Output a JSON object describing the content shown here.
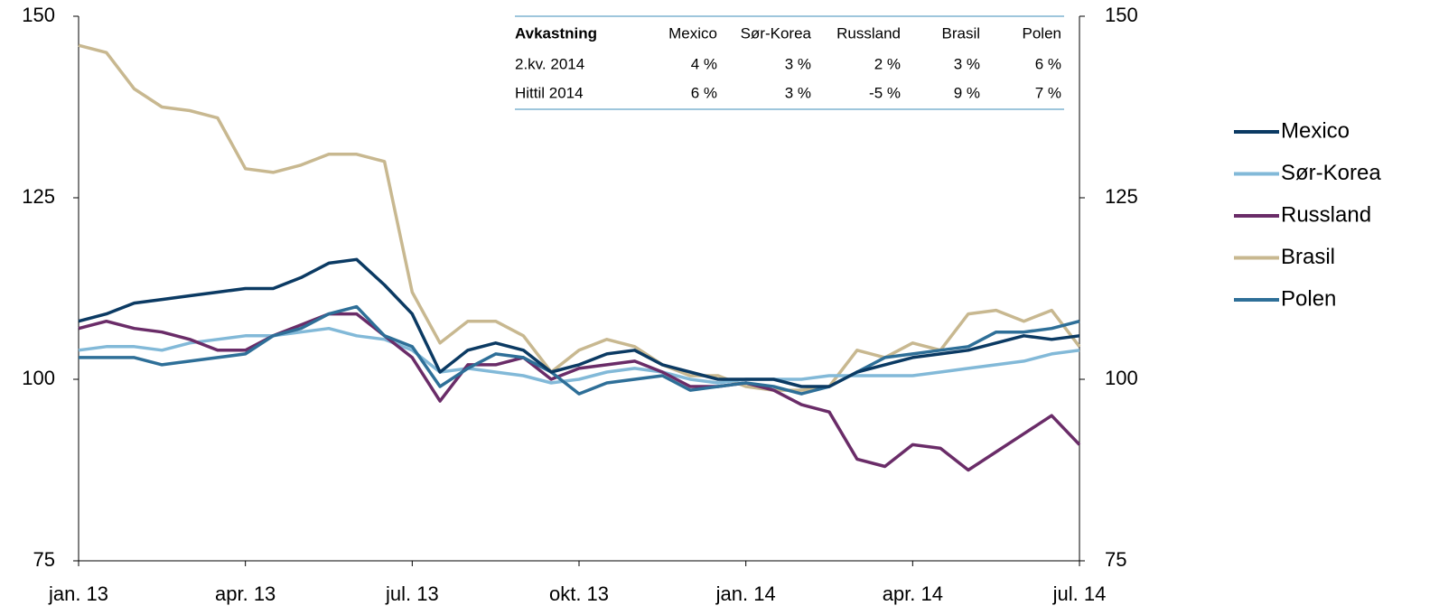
{
  "chart_data": {
    "type": "line",
    "xticks": [
      {
        "value": 0,
        "label": "jan. 13"
      },
      {
        "value": 3,
        "label": "apr. 13"
      },
      {
        "value": 6,
        "label": "jul. 13"
      },
      {
        "value": 9,
        "label": "okt. 13"
      },
      {
        "value": 12,
        "label": "jan. 14"
      },
      {
        "value": 15,
        "label": "apr. 14"
      },
      {
        "value": 18,
        "label": "jul. 14"
      }
    ],
    "xlim": [
      0,
      18
    ],
    "ylim": [
      75,
      150
    ],
    "yticks": [
      75,
      100,
      125,
      150
    ],
    "y2lim": [
      75,
      150
    ],
    "y2ticks": [
      75,
      100,
      125,
      150
    ],
    "legend": "right",
    "x": [
      0,
      0.5,
      1,
      1.5,
      2,
      2.5,
      3,
      3.5,
      4,
      4.5,
      5,
      5.5,
      6,
      6.5,
      7,
      7.5,
      8,
      8.5,
      9,
      9.5,
      10,
      10.5,
      11,
      11.5,
      12,
      12.5,
      13,
      13.5,
      14,
      14.5,
      15,
      15.5,
      16,
      16.5,
      17,
      17.5,
      18
    ],
    "series": [
      {
        "name": "Mexico",
        "color": "#0b3a63",
        "values": [
          108,
          109,
          110.5,
          111,
          111.5,
          112,
          112.5,
          112.5,
          114,
          116,
          116.5,
          113,
          109,
          101,
          104,
          105,
          104,
          101,
          102,
          103.5,
          104,
          102,
          101,
          100,
          100,
          100,
          99,
          99,
          101,
          102,
          103,
          103.5,
          104,
          105,
          106,
          105.5,
          106
        ]
      },
      {
        "name": "Sør-Korea",
        "color": "#82b9d8",
        "values": [
          104,
          104.5,
          104.5,
          104,
          105,
          105.5,
          106,
          106,
          106.5,
          107,
          106,
          105.5,
          104,
          101,
          101.5,
          101,
          100.5,
          99.5,
          100,
          101,
          101.5,
          101,
          100,
          99.5,
          100,
          100,
          100,
          100.5,
          100.5,
          100.5,
          100.5,
          101,
          101.5,
          102,
          102.5,
          103.5,
          104
        ]
      },
      {
        "name": "Russland",
        "color": "#6a2c68",
        "values": [
          107,
          108,
          107,
          106.5,
          105.5,
          104,
          104,
          106,
          107.5,
          109,
          109,
          106,
          103,
          97,
          102,
          102,
          103,
          100,
          101.5,
          102,
          102.5,
          101,
          99,
          99,
          99.5,
          98.5,
          96.5,
          95.5,
          89,
          88,
          91,
          90.5,
          87.5,
          90,
          92.5,
          95,
          91
        ]
      },
      {
        "name": "Brasil",
        "color": "#c8b890",
        "values": [
          146,
          145,
          140,
          137.5,
          137,
          136,
          129,
          128.5,
          129.5,
          131,
          131,
          130,
          112,
          105,
          108,
          108,
          106,
          101,
          104,
          105.5,
          104.5,
          102,
          100.5,
          100.5,
          99,
          98.5,
          98.5,
          99,
          104,
          103,
          105,
          104,
          109,
          109.5,
          108,
          109.5,
          104.5
        ]
      },
      {
        "name": "Polen",
        "color": "#2e6f98",
        "values": [
          103,
          103,
          103,
          102,
          102.5,
          103,
          103.5,
          106,
          107,
          109,
          110,
          106,
          104.5,
          99,
          101.5,
          103.5,
          103,
          101,
          98,
          99.5,
          100,
          100.5,
          98.5,
          99,
          99.5,
          99,
          98,
          99,
          101,
          103,
          103.5,
          104,
          104.5,
          106.5,
          106.5,
          107,
          108
        ]
      }
    ],
    "table": {
      "columns": [
        "Avkastning",
        "Mexico",
        "Sør-Korea",
        "Russland",
        "Brasil",
        "Polen"
      ],
      "rows": [
        [
          "2.kv. 2014",
          "4 %",
          "3 %",
          "2 %",
          "3 %",
          "6 %"
        ],
        [
          "Hittil 2014",
          "6 %",
          "3 %",
          "-5 %",
          "9 %",
          "7 %"
        ]
      ]
    }
  }
}
